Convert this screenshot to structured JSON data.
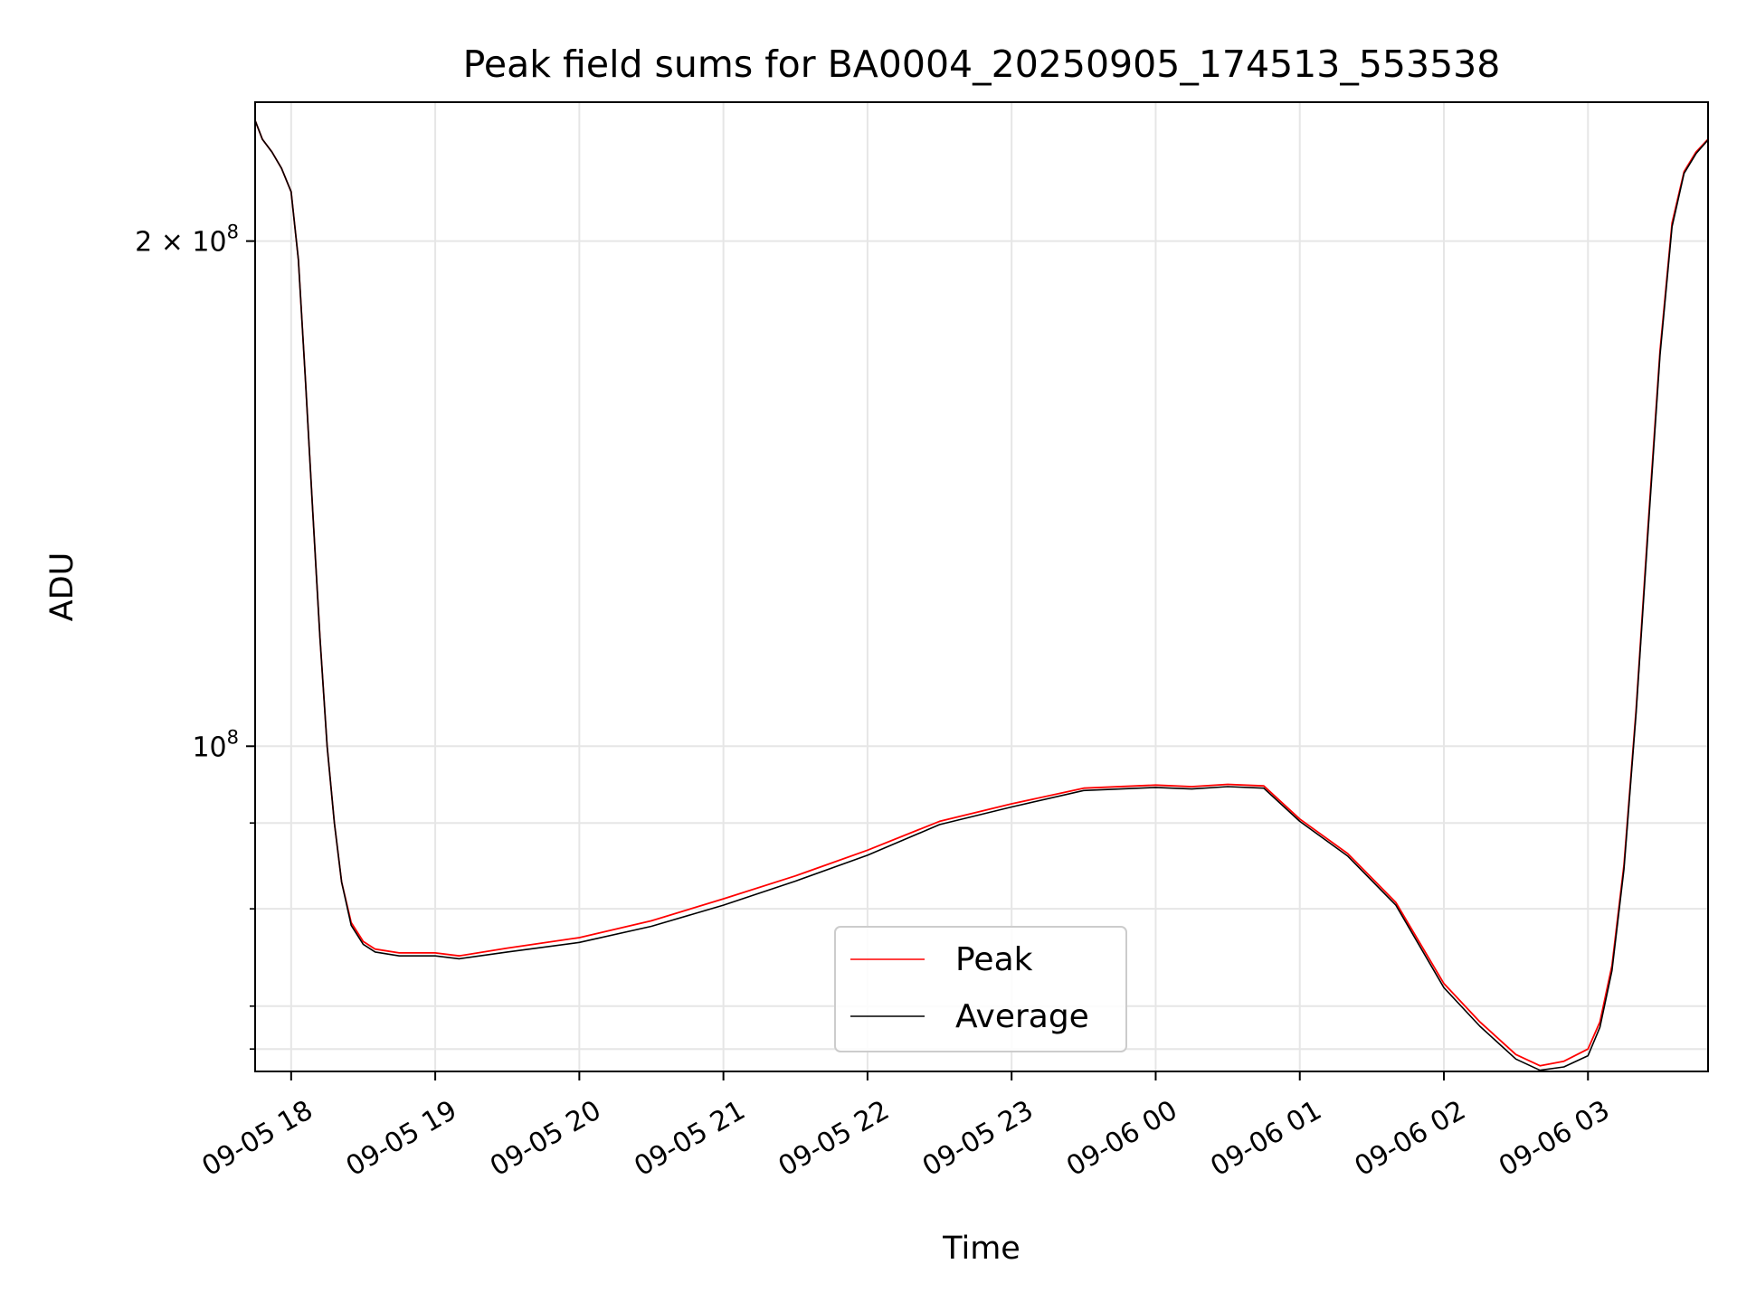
{
  "chart_data": {
    "type": "line",
    "title": "Peak field sums for BA0004_20250905_174513_553538",
    "xlabel": "Time",
    "ylabel": "ADU",
    "yscale": "log",
    "grid": true,
    "legend_position": "bottom-center",
    "xlim": [
      "2025-09-05 17:45",
      "2025-09-06 03:50"
    ],
    "ylim": [
      64000000,
      242000000
    ],
    "x_tick_labels": [
      "09-05 18",
      "09-05 19",
      "09-05 20",
      "09-05 21",
      "09-05 22",
      "09-05 23",
      "09-06 00",
      "09-06 01",
      "09-06 02",
      "09-06 03"
    ],
    "x_ticks": [
      "2025-09-05 18:00",
      "2025-09-05 19:00",
      "2025-09-05 20:00",
      "2025-09-05 21:00",
      "2025-09-05 22:00",
      "2025-09-05 23:00",
      "2025-09-06 00:00",
      "2025-09-06 01:00",
      "2025-09-06 02:00",
      "2025-09-06 03:00"
    ],
    "y_major_ticks": [
      {
        "value": 100000000,
        "base": "10",
        "exp": "8",
        "mult": ""
      },
      {
        "value": 200000000,
        "base": "10",
        "exp": "8",
        "mult": "2 × "
      }
    ],
    "y_minor_ticks": [
      66000000,
      70000000,
      80000000,
      90000000
    ],
    "series": [
      {
        "name": "Peak",
        "color": "#ff0000",
        "x": [
          "2025-09-05 17:45",
          "2025-09-05 17:48",
          "2025-09-05 17:52",
          "2025-09-05 17:56",
          "2025-09-05 18:00",
          "2025-09-05 18:03",
          "2025-09-05 18:06",
          "2025-09-05 18:09",
          "2025-09-05 18:12",
          "2025-09-05 18:15",
          "2025-09-05 18:18",
          "2025-09-05 18:21",
          "2025-09-05 18:25",
          "2025-09-05 18:30",
          "2025-09-05 18:35",
          "2025-09-05 18:45",
          "2025-09-05 19:00",
          "2025-09-05 19:10",
          "2025-09-05 19:30",
          "2025-09-05 20:00",
          "2025-09-05 20:30",
          "2025-09-05 21:00",
          "2025-09-05 21:30",
          "2025-09-05 22:00",
          "2025-09-05 22:30",
          "2025-09-05 23:00",
          "2025-09-05 23:30",
          "2025-09-06 00:00",
          "2025-09-06 00:15",
          "2025-09-06 00:30",
          "2025-09-06 00:45",
          "2025-09-06 01:00",
          "2025-09-06 01:20",
          "2025-09-06 01:40",
          "2025-09-06 02:00",
          "2025-09-06 02:15",
          "2025-09-06 02:30",
          "2025-09-06 02:40",
          "2025-09-06 02:50",
          "2025-09-06 03:00",
          "2025-09-06 03:05",
          "2025-09-06 03:10",
          "2025-09-06 03:15",
          "2025-09-06 03:20",
          "2025-09-06 03:25",
          "2025-09-06 03:30",
          "2025-09-06 03:35",
          "2025-09-06 03:40",
          "2025-09-06 03:45",
          "2025-09-06 03:50"
        ],
        "values": [
          236000000,
          230000000,
          226000000,
          221000000,
          214000000,
          195000000,
          165000000,
          138000000,
          116000000,
          100000000,
          90000000,
          83000000,
          78500000,
          76500000,
          75700000,
          75300000,
          75300000,
          75000000,
          75800000,
          76900000,
          78700000,
          81100000,
          83700000,
          86700000,
          90200000,
          92400000,
          94400000,
          94800000,
          94600000,
          94900000,
          94700000,
          90500000,
          86300000,
          80700000,
          72200000,
          68500000,
          65500000,
          64500000,
          64900000,
          66000000,
          68500000,
          74000000,
          85000000,
          105000000,
          135000000,
          172000000,
          205000000,
          220000000,
          226000000,
          230000000
        ]
      },
      {
        "name": "Average",
        "color": "#000000",
        "x": [
          "2025-09-05 17:45",
          "2025-09-05 17:48",
          "2025-09-05 17:52",
          "2025-09-05 17:56",
          "2025-09-05 18:00",
          "2025-09-05 18:03",
          "2025-09-05 18:06",
          "2025-09-05 18:09",
          "2025-09-05 18:12",
          "2025-09-05 18:15",
          "2025-09-05 18:18",
          "2025-09-05 18:21",
          "2025-09-05 18:25",
          "2025-09-05 18:30",
          "2025-09-05 18:35",
          "2025-09-05 18:45",
          "2025-09-05 19:00",
          "2025-09-05 19:10",
          "2025-09-05 19:30",
          "2025-09-05 20:00",
          "2025-09-05 20:30",
          "2025-09-05 21:00",
          "2025-09-05 21:30",
          "2025-09-05 22:00",
          "2025-09-05 22:30",
          "2025-09-05 23:00",
          "2025-09-05 23:30",
          "2025-09-06 00:00",
          "2025-09-06 00:15",
          "2025-09-06 00:30",
          "2025-09-06 00:45",
          "2025-09-06 01:00",
          "2025-09-06 01:20",
          "2025-09-06 01:40",
          "2025-09-06 02:00",
          "2025-09-06 02:15",
          "2025-09-06 02:30",
          "2025-09-06 02:40",
          "2025-09-06 02:50",
          "2025-09-06 03:00",
          "2025-09-06 03:05",
          "2025-09-06 03:10",
          "2025-09-06 03:15",
          "2025-09-06 03:20",
          "2025-09-06 03:25",
          "2025-09-06 03:30",
          "2025-09-06 03:35",
          "2025-09-06 03:40",
          "2025-09-06 03:45",
          "2025-09-06 03:50"
        ],
        "values": [
          236000000,
          230000000,
          226000000,
          221000000,
          214000000,
          195000000,
          165000000,
          138000000,
          116000000,
          100000000,
          90000000,
          83000000,
          78200000,
          76200000,
          75400000,
          75000000,
          75000000,
          74700000,
          75400000,
          76400000,
          78100000,
          80400000,
          83100000,
          86100000,
          89800000,
          92000000,
          94100000,
          94500000,
          94300000,
          94600000,
          94400000,
          90200000,
          86000000,
          80400000,
          71800000,
          68100000,
          65100000,
          64100000,
          64400000,
          65400000,
          68000000,
          73500000,
          84500000,
          104500000,
          134000000,
          171000000,
          204000000,
          219500000,
          225500000,
          229800000
        ]
      }
    ]
  }
}
